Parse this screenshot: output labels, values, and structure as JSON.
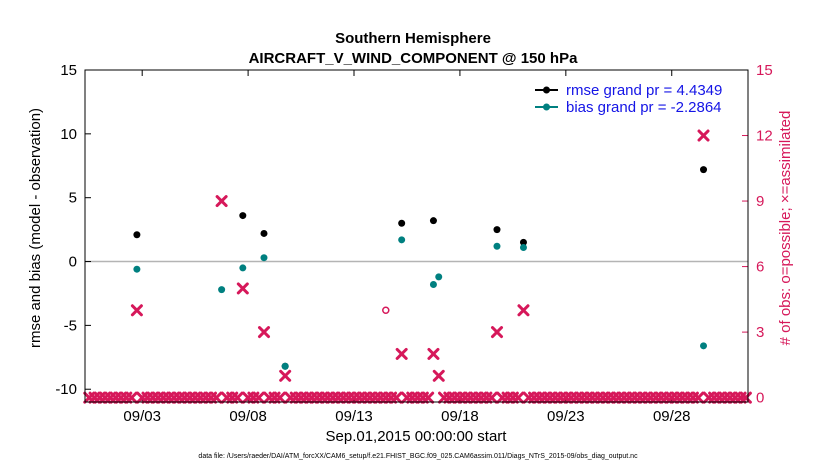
{
  "chart_data": {
    "type": "scatter",
    "title_line1": "Southern Hemisphere",
    "title_line2": "AIRCRAFT_V_WIND_COMPONENT @ 150 hPa",
    "xlabel": "Sep.01,2015 00:00:00 start",
    "ylabel_left": "rmse and bias (model - observation)",
    "ylabel_right": "# of obs: o=possible; ×=assimilated",
    "xlim": [
      0.3,
      31.6
    ],
    "ylim_left": [
      -11,
      15
    ],
    "ylim_right": [
      -0.2,
      15
    ],
    "y_ticks_left": [
      -10,
      -5,
      0,
      5,
      10,
      15
    ],
    "y_ticks_right": [
      0,
      3,
      6,
      9,
      12,
      15
    ],
    "x_ticks": [
      {
        "day": 3,
        "label": "09/03"
      },
      {
        "day": 8,
        "label": "09/08"
      },
      {
        "day": 13,
        "label": "09/13"
      },
      {
        "day": 18,
        "label": "09/18"
      },
      {
        "day": 23,
        "label": "09/23"
      },
      {
        "day": 28,
        "label": "09/28"
      }
    ],
    "zero_line": 0,
    "grid": false,
    "legend_position": "top-right",
    "colors": {
      "rmse": "#000000",
      "bias": "#008080",
      "obs": "#d6185a",
      "legend_text": "#1414e6",
      "zero_line": "#b4b4b4",
      "right_axis": "#d6185a"
    },
    "series": [
      {
        "name": "rmse grand pr = 4.4349",
        "key": "rmse",
        "axis": "left",
        "points": [
          [
            2.75,
            2.1
          ],
          [
            7.75,
            3.6
          ],
          [
            8.75,
            2.2
          ],
          [
            15.25,
            3.0
          ],
          [
            16.75,
            3.2
          ],
          [
            19.75,
            2.5
          ],
          [
            21.0,
            1.5
          ],
          [
            29.5,
            7.2
          ],
          [
            9.75,
            -8.2
          ]
        ]
      },
      {
        "name": "bias grand pr = -2.2864",
        "key": "bias",
        "axis": "left",
        "points": [
          [
            2.75,
            -0.6
          ],
          [
            6.75,
            -2.2
          ],
          [
            7.75,
            -0.5
          ],
          [
            8.75,
            0.3
          ],
          [
            15.25,
            1.7
          ],
          [
            16.75,
            -1.8
          ],
          [
            17.0,
            -1.2
          ],
          [
            19.75,
            1.2
          ],
          [
            21.0,
            1.1
          ],
          [
            29.5,
            -6.6
          ],
          [
            9.75,
            -8.2
          ]
        ]
      },
      {
        "name": "obs possible",
        "key": "possible",
        "axis": "right",
        "points": [
          [
            14.5,
            4
          ]
        ]
      },
      {
        "name": "obs assimilated",
        "key": "assimilated",
        "axis": "right",
        "points": [
          [
            2.75,
            4
          ],
          [
            6.75,
            9
          ],
          [
            7.75,
            5
          ],
          [
            8.75,
            3
          ],
          [
            9.75,
            1
          ],
          [
            15.25,
            2
          ],
          [
            16.75,
            2
          ],
          [
            17.0,
            1
          ],
          [
            19.75,
            3
          ],
          [
            21.0,
            4
          ],
          [
            29.5,
            12
          ]
        ],
        "zero_days_start": 0.5,
        "zero_days_end": 31.5,
        "zero_days_step": 0.25
      }
    ],
    "footnote": "data file: /Users/raeder/DAI/ATM_forcXX/CAM6_setup/f.e21.FHIST_BGC.f09_025.CAM6assim.011/Diags_NTrS_2015-09/obs_diag_output.nc"
  }
}
